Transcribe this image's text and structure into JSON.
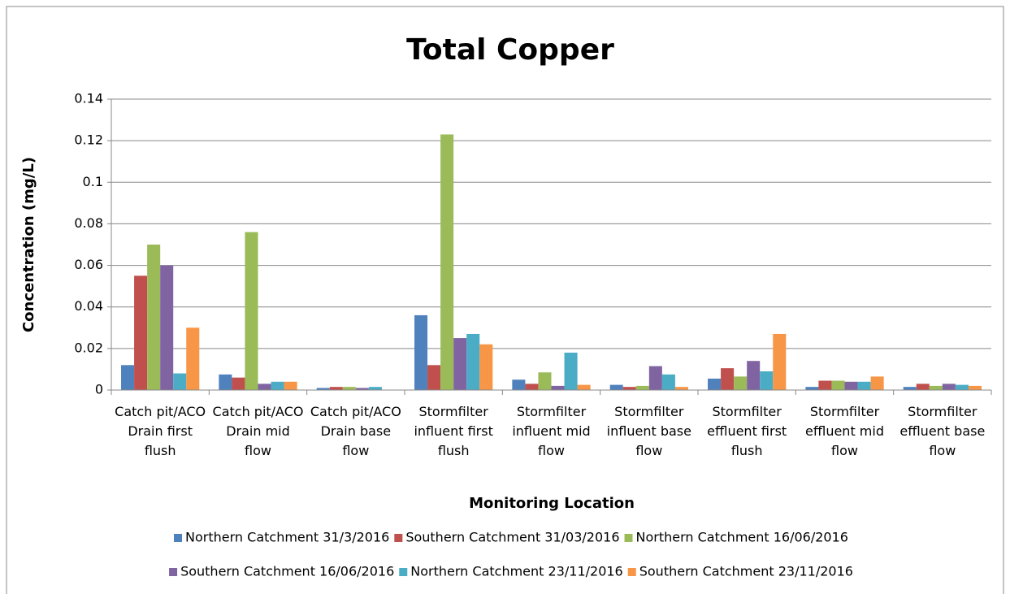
{
  "chart_data": {
    "type": "bar",
    "title": "Total Copper",
    "x_label": "Monitoring Location",
    "y_label": "Concentration (mg/L)",
    "categories": [
      "Catch pit/ACO Drain first flush",
      "Catch pit/ACO Drain mid flow",
      "Catch pit/ACO Drain base flow",
      "Stormfilter influent first flush",
      "Stormfilter influent mid flow",
      "Stormfilter influent base flow",
      "Stormfilter effluent first flush",
      "Stormfilter effluent mid flow",
      "Stormfilter effluent base flow"
    ],
    "series": [
      {
        "name": "Northern Catchment 31/3/2016",
        "color": "#4f81bd",
        "values": [
          0.012,
          0.0075,
          0.001,
          0.036,
          0.005,
          0.0025,
          0.0055,
          0.0015,
          0.0015
        ]
      },
      {
        "name": "Southern Catchment 31/03/2016",
        "color": "#c0504d",
        "values": [
          0.055,
          0.006,
          0.0015,
          0.012,
          0.003,
          0.0015,
          0.0105,
          0.0045,
          0.003
        ]
      },
      {
        "name": "Northern Catchment 16/06/2016",
        "color": "#9bbb59",
        "values": [
          0.07,
          0.076,
          0.0015,
          0.123,
          0.0085,
          0.002,
          0.0065,
          0.0045,
          0.002
        ]
      },
      {
        "name": "Southern Catchment 16/06/2016",
        "color": "#8064a2",
        "values": [
          0.06,
          0.003,
          0.001,
          0.025,
          0.002,
          0.0115,
          0.014,
          0.004,
          0.003
        ]
      },
      {
        "name": "Northern Catchment 23/11/2016",
        "color": "#4bacc6",
        "values": [
          0.008,
          0.004,
          0.0015,
          0.027,
          0.018,
          0.0075,
          0.009,
          0.004,
          0.0025
        ]
      },
      {
        "name": "Southern Catchment 23/11/2016",
        "color": "#f79646",
        "values": [
          0.03,
          0.004,
          0,
          0.022,
          0.0025,
          0.0015,
          0.027,
          0.0065,
          0.002
        ]
      }
    ],
    "ylim": [
      0,
      0.14
    ],
    "yticks": [
      0,
      0.02,
      0.04,
      0.06,
      0.08,
      0.1,
      0.12,
      0.14
    ],
    "grid": true,
    "legend": "bottom"
  }
}
